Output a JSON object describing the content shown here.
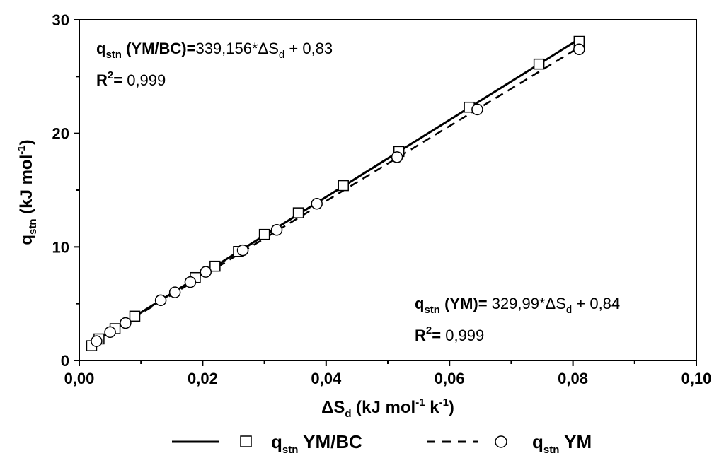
{
  "chart_data": {
    "type": "scatter",
    "xlim": [
      0,
      0.1
    ],
    "ylim": [
      0,
      30
    ],
    "x_ticks": [
      "0,00",
      "0,02",
      "0,04",
      "0,06",
      "0,08",
      "0,10"
    ],
    "y_ticks": [
      "0",
      "10",
      "20",
      "30"
    ],
    "xlabel": {
      "main": "ΔS",
      "sub": "d",
      "rest1": " (kJ mol",
      "sup1": "-1",
      "rest2": " k",
      "sup2": "-1",
      "rest3": ")"
    },
    "ylabel": {
      "main": "q",
      "sub": "stn",
      "rest1": " (kJ mol",
      "sup1": "-1",
      "rest2": ")"
    },
    "series": [
      {
        "name": "q stn YM/BC",
        "marker": "square",
        "line_style": "solid",
        "fit": {
          "slope": 339.156,
          "intercept": 0.83
        },
        "points": [
          [
            0.002,
            1.3
          ],
          [
            0.0032,
            1.9
          ],
          [
            0.0058,
            2.8
          ],
          [
            0.009,
            3.9
          ],
          [
            0.0188,
            7.3
          ],
          [
            0.022,
            8.3
          ],
          [
            0.0258,
            9.6
          ],
          [
            0.03,
            11.1
          ],
          [
            0.0355,
            13.0
          ],
          [
            0.0428,
            15.4
          ],
          [
            0.0518,
            18.4
          ],
          [
            0.0632,
            22.3
          ],
          [
            0.0745,
            26.1
          ],
          [
            0.081,
            28.1
          ]
        ]
      },
      {
        "name": "q stn YM",
        "marker": "circle",
        "line_style": "dashed",
        "fit": {
          "slope": 329.99,
          "intercept": 0.84
        },
        "points": [
          [
            0.0028,
            1.7
          ],
          [
            0.005,
            2.5
          ],
          [
            0.0075,
            3.3
          ],
          [
            0.0132,
            5.3
          ],
          [
            0.0155,
            6.0
          ],
          [
            0.018,
            6.9
          ],
          [
            0.0205,
            7.8
          ],
          [
            0.0265,
            9.7
          ],
          [
            0.032,
            11.5
          ],
          [
            0.0385,
            13.8
          ],
          [
            0.0515,
            17.9
          ],
          [
            0.0645,
            22.1
          ],
          [
            0.081,
            27.4
          ]
        ]
      }
    ],
    "annotations": {
      "eq1": {
        "q": "q",
        "sub": "stn",
        "label": " (YM/BC)=",
        "formula": "339,156*",
        "delta": "ΔS",
        "dsub": "d",
        "tail": " + 0,83"
      },
      "r1": {
        "r": "R",
        "sup": "2",
        "eq": "=",
        "val": " 0,999"
      },
      "eq2": {
        "q": "q",
        "sub": "stn",
        "label": " (YM)=",
        "formula": " 329,99*",
        "delta": "ΔS",
        "dsub": "d",
        "tail": " + 0,84"
      },
      "r2": {
        "r": "R",
        "sup": "2",
        "eq": "=",
        "val": " 0,999"
      }
    },
    "legend": [
      {
        "q": "q",
        "sub": "stn",
        "label": " YM/BC"
      },
      {
        "q": "q",
        "sub": "stn",
        "label": " YM"
      }
    ],
    "grid": false,
    "legend_placement": "bottom"
  }
}
